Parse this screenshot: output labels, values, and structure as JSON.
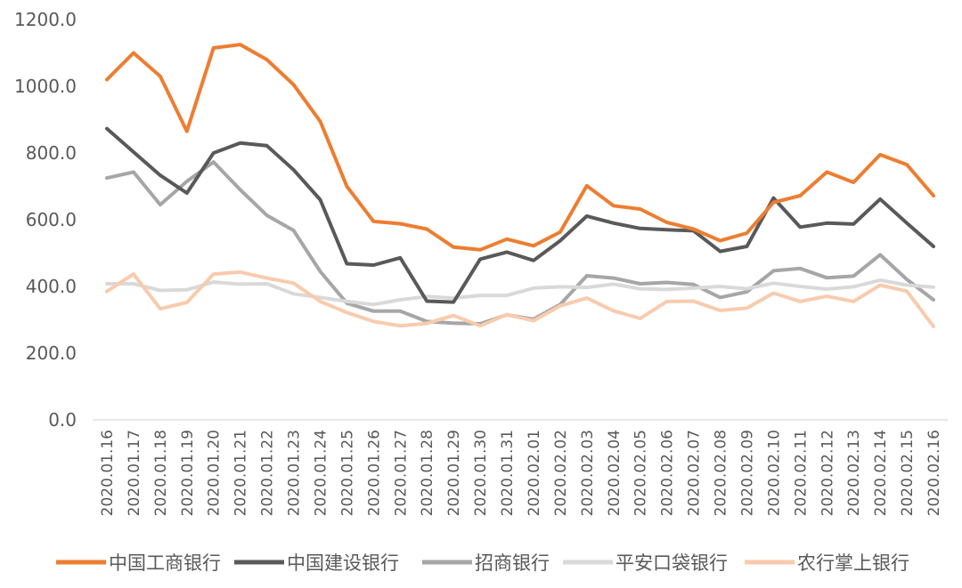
{
  "chart_data": {
    "type": "line",
    "title": "",
    "xlabel": "",
    "ylabel": "",
    "ylim": [
      0,
      1200
    ],
    "yticks": [
      "0.0",
      "200.0",
      "400.0",
      "600.0",
      "800.0",
      "1000.0",
      "1200.0"
    ],
    "grid": false,
    "legend_position": "bottom",
    "categories": [
      "2020.01.16",
      "2020.01.17",
      "2020.01.18",
      "2020.01.19",
      "2020.01.20",
      "2020.01.21",
      "2020.01.22",
      "2020.01.23",
      "2020.01.24",
      "2020.01.25",
      "2020.01.26",
      "2020.01.27",
      "2020.01.28",
      "2020.01.29",
      "2020.01.30",
      "2020.01.31",
      "2020.02.01",
      "2020.02.02",
      "2020.02.03",
      "2020.02.04",
      "2020.02.05",
      "2020.02.06",
      "2020.02.07",
      "2020.02.08",
      "2020.02.09",
      "2020.02.10",
      "2020.02.11",
      "2020.02.12",
      "2020.02.13",
      "2020.02.14",
      "2020.02.15",
      "2020.02.16"
    ],
    "series": [
      {
        "name": "中国工商银行",
        "color": "#ED7D31",
        "values": [
          1020,
          1100,
          1030,
          865,
          1115,
          1125,
          1080,
          1005,
          895,
          700,
          595,
          588,
          572,
          518,
          510,
          542,
          522,
          563,
          702,
          642,
          632,
          592,
          572,
          537,
          560,
          652,
          672,
          743,
          712,
          795,
          765,
          672
        ]
      },
      {
        "name": "中国建设银行",
        "color": "#595959",
        "values": [
          873,
          803,
          733,
          680,
          800,
          830,
          822,
          750,
          660,
          468,
          464,
          486,
          356,
          353,
          482,
          503,
          478,
          537,
          611,
          590,
          574,
          570,
          567,
          505,
          520,
          665,
          578,
          590,
          587,
          662,
          590,
          520
        ]
      },
      {
        "name": "招商银行",
        "color": "#A6A6A6",
        "values": [
          725,
          743,
          645,
          715,
          773,
          690,
          613,
          568,
          445,
          350,
          326,
          326,
          295,
          290,
          288,
          315,
          302,
          346,
          432,
          425,
          408,
          412,
          406,
          367,
          384,
          447,
          454,
          426,
          431,
          495,
          421,
          360
        ]
      },
      {
        "name": "平安口袋银行",
        "color": "#D9D9D9",
        "values": [
          408,
          408,
          388,
          390,
          413,
          407,
          408,
          378,
          367,
          355,
          346,
          360,
          370,
          365,
          373,
          373,
          395,
          399,
          397,
          407,
          393,
          391,
          395,
          400,
          393,
          410,
          400,
          392,
          399,
          419,
          404,
          398
        ]
      },
      {
        "name": "农行掌上银行",
        "color": "#F8CBAD",
        "values": [
          385,
          437,
          333,
          352,
          437,
          443,
          425,
          410,
          355,
          322,
          295,
          282,
          289,
          313,
          282,
          316,
          297,
          342,
          365,
          327,
          304,
          355,
          356,
          328,
          335,
          380,
          355,
          371,
          355,
          404,
          386,
          280
        ]
      }
    ]
  }
}
